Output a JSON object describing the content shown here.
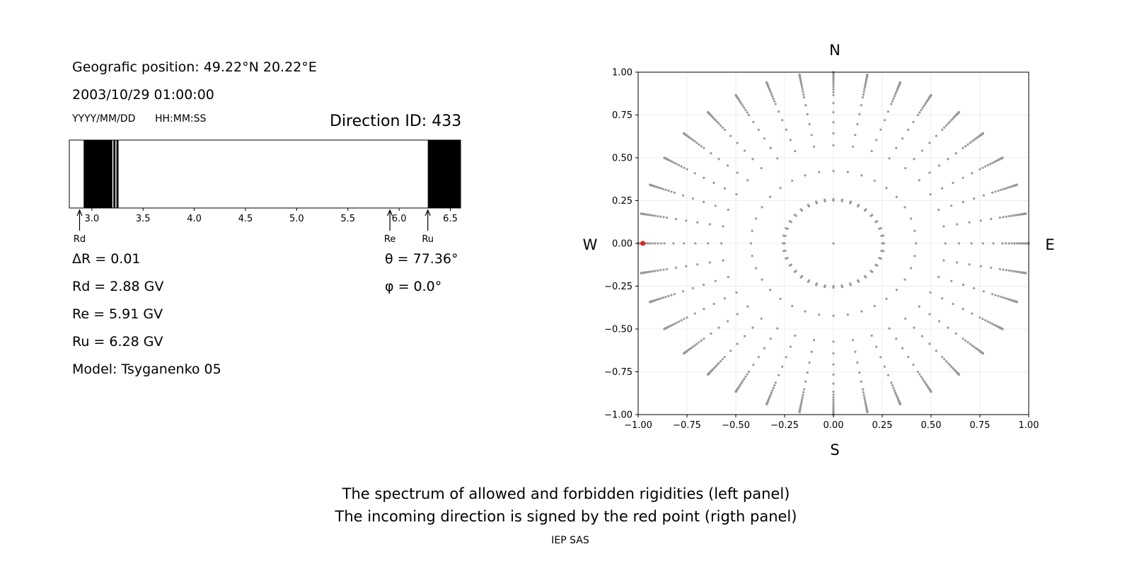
{
  "left_panel": {
    "position_text": "Geografic position: 49.22°N 20.22°E",
    "datetime_text": "2003/10/29 01:00:00",
    "date_format": "YYYY/MM/DD",
    "time_format": "HH:MM:SS",
    "direction_text": "Direction ID: 433",
    "delta_r": "ΔR = 0.01",
    "rd_text": "Rd = 2.88 GV",
    "re_text": "Re = 5.91 GV",
    "ru_text": "Ru = 6.28 GV",
    "model_text": "Model: Tsyganenko 05",
    "theta_text": "θ = 77.36°",
    "phi_text": "φ = 0.0°"
  },
  "footer": {
    "line1": "The spectrum of allowed and forbidden rigidities (left panel)",
    "line2": "The incoming direction is signed by the red point (rigth panel)",
    "credit": "IEP SAS"
  },
  "colors": {
    "forbidden": "#000000",
    "grid_point": "#999999",
    "selected_point": "#e8211b"
  },
  "chart_data": [
    {
      "type": "bar",
      "description_kind": "rigidity spectrum strip",
      "xlim": [
        2.78,
        6.6
      ],
      "xticks": [
        3.0,
        3.5,
        4.0,
        4.5,
        5.0,
        5.5,
        6.0,
        6.5
      ],
      "forbidden_bands": [
        [
          2.92,
          3.2
        ],
        [
          3.21,
          3.23
        ],
        [
          3.24,
          3.26
        ],
        [
          6.28,
          6.6
        ]
      ],
      "markers": [
        {
          "label": "Rd",
          "value": 2.88
        },
        {
          "label": "Re",
          "value": 5.91
        },
        {
          "label": "Ru",
          "value": 6.28
        }
      ]
    },
    {
      "type": "scatter",
      "xlim": [
        -1.0,
        1.0
      ],
      "ylim": [
        -1.0,
        1.0
      ],
      "xticks": [
        -1.0,
        -0.75,
        -0.5,
        -0.25,
        0.0,
        0.25,
        0.5,
        0.75,
        1.0
      ],
      "yticks": [
        -1.0,
        -0.75,
        -0.5,
        -0.25,
        0.0,
        0.25,
        0.5,
        0.75,
        1.0
      ],
      "grid": true,
      "directions": {
        "top": "N",
        "bottom": "S",
        "left": "W",
        "right": "E"
      },
      "grid_points": {
        "zenith_steps_deg": [
          0,
          15,
          25,
          35,
          40,
          45,
          50,
          55,
          60,
          62,
          64,
          66,
          68,
          70,
          72,
          74,
          76,
          78,
          79,
          80,
          81,
          82,
          83,
          84,
          85,
          86,
          87,
          88,
          89,
          90
        ],
        "azimuth_step_deg": 10,
        "ring_radius": 0.25,
        "ring_points": 36
      },
      "selected_point": {
        "x": -0.976,
        "y": 0.0
      }
    }
  ]
}
